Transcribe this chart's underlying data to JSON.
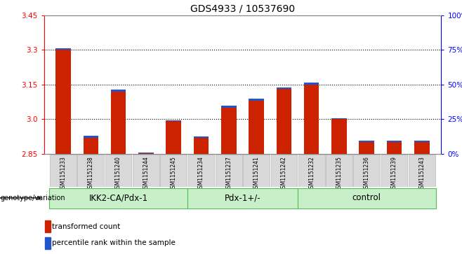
{
  "title": "GDS4933 / 10537690",
  "samples": [
    "GSM1151233",
    "GSM1151238",
    "GSM1151240",
    "GSM1151244",
    "GSM1151245",
    "GSM1151234",
    "GSM1151237",
    "GSM1151241",
    "GSM1151242",
    "GSM1151232",
    "GSM1151235",
    "GSM1151236",
    "GSM1151239",
    "GSM1151243"
  ],
  "red_values": [
    3.3,
    2.92,
    3.12,
    2.853,
    2.99,
    2.92,
    3.05,
    3.08,
    3.13,
    3.15,
    3.0,
    2.9,
    2.9,
    2.9
  ],
  "blue_values": [
    0.008,
    0.007,
    0.007,
    0.003,
    0.005,
    0.005,
    0.007,
    0.007,
    0.007,
    0.007,
    0.005,
    0.005,
    0.005,
    0.005
  ],
  "ymin": 2.85,
  "ymax": 3.45,
  "yticks": [
    2.85,
    3.0,
    3.15,
    3.3,
    3.45
  ],
  "y2labels": [
    "0%",
    "25%",
    "50%",
    "75%",
    "100%"
  ],
  "grid_lines": [
    3.0,
    3.15,
    3.3
  ],
  "groups": [
    {
      "label": "IKK2-CA/Pdx-1",
      "start": 0,
      "end": 4
    },
    {
      "label": "Pdx-1+/-",
      "start": 5,
      "end": 8
    },
    {
      "label": "control",
      "start": 9,
      "end": 13
    }
  ],
  "group_color": "#c8f0c8",
  "group_border_color": "#55bb55",
  "bar_color_red": "#cc2200",
  "bar_color_blue": "#2255cc",
  "bar_width": 0.5,
  "legend_red": "transformed count",
  "legend_blue": "percentile rank within the sample",
  "genotype_label": "genotype/variation",
  "title_fontsize": 10,
  "tick_fontsize": 7.5,
  "group_fontsize": 8.5,
  "sample_fontsize": 5.5
}
